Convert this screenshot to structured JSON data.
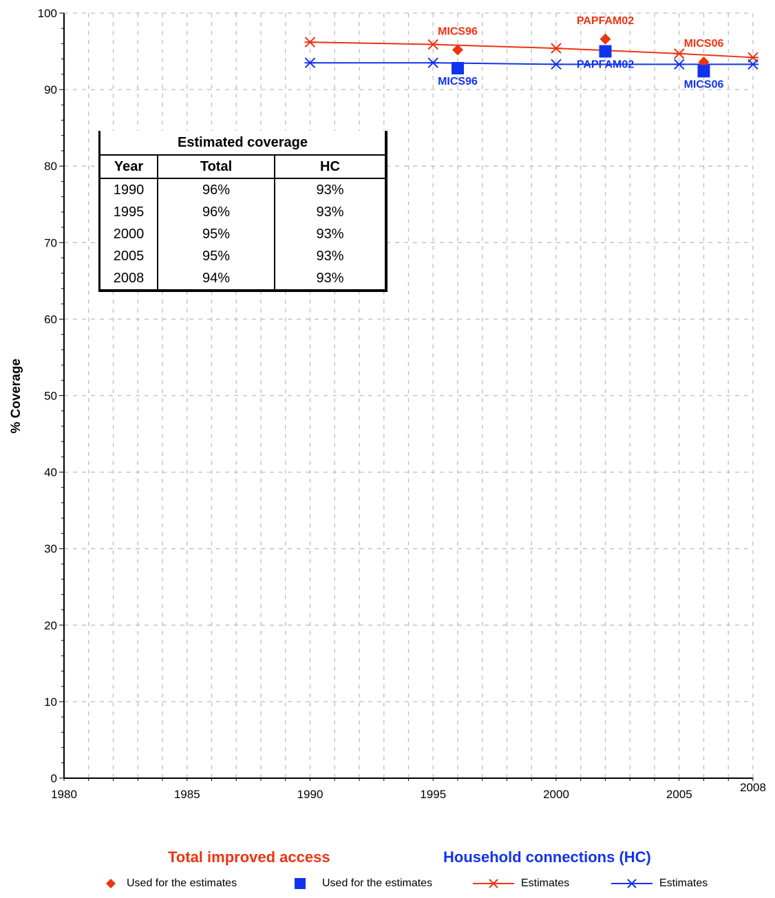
{
  "chart_data": {
    "type": "line",
    "title": "",
    "ylabel": "% Coverage",
    "xlabel": "",
    "xlim": [
      1980,
      2008
    ],
    "ylim": [
      0,
      100
    ],
    "x_ticks": [
      "1980",
      "1985",
      "1990",
      "1995",
      "2000",
      "2005",
      "2008"
    ],
    "y_ticks": [
      "0",
      "10",
      "20",
      "30",
      "40",
      "50",
      "60",
      "70",
      "80",
      "90",
      "100"
    ],
    "grid": true,
    "series": [
      {
        "name": "Estimates",
        "group": "Total improved access",
        "color": "#ee3311",
        "marker": "asterisk",
        "x": [
          1990,
          1995,
          2000,
          2005,
          2008
        ],
        "y": [
          96.2,
          95.9,
          95.4,
          94.7,
          94.2
        ]
      },
      {
        "name": "Estimates",
        "group": "Household connections (HC)",
        "color": "#1133ee",
        "marker": "asterisk",
        "x": [
          1990,
          1995,
          2000,
          2005,
          2008
        ],
        "y": [
          93.5,
          93.5,
          93.3,
          93.3,
          93.3
        ]
      },
      {
        "name": "Used for the estimates",
        "group": "Total improved access",
        "color": "#ee3311",
        "marker": "diamond",
        "points": [
          {
            "x": 1996,
            "y": 95.2,
            "label": "MICS96"
          },
          {
            "x": 2002,
            "y": 96.6,
            "label": "PAPFAM02"
          },
          {
            "x": 2006,
            "y": 93.6,
            "label": "MICS06"
          }
        ]
      },
      {
        "name": "Used for the estimates",
        "group": "Household connections (HC)",
        "color": "#1133ee",
        "marker": "square",
        "points": [
          {
            "x": 1996,
            "y": 92.8,
            "label": "MICS96"
          },
          {
            "x": 2002,
            "y": 95.0,
            "label": "PAPFAM02"
          },
          {
            "x": 2006,
            "y": 92.4,
            "label": "MICS06"
          }
        ]
      }
    ],
    "table": {
      "title": "Estimated coverage",
      "columns": [
        "Year",
        "Total",
        "HC"
      ],
      "rows": [
        [
          "1990",
          "96%",
          "93%"
        ],
        [
          "1995",
          "96%",
          "93%"
        ],
        [
          "2000",
          "95%",
          "93%"
        ],
        [
          "2005",
          "95%",
          "93%"
        ],
        [
          "2008",
          "94%",
          "93%"
        ]
      ]
    },
    "series_titles": [
      {
        "text": "Total improved access",
        "color": "#ee3311"
      },
      {
        "text": "Household connections (HC)",
        "color": "#1133ee"
      }
    ],
    "legend": [
      {
        "label": "Used for the estimates",
        "symbol": "diamond",
        "color": "#ee3311"
      },
      {
        "label": "Used for the estimates",
        "symbol": "square",
        "color": "#1133ee"
      },
      {
        "label": "Estimates",
        "symbol": "line-asterisk",
        "color": "#ee3311"
      },
      {
        "label": "Estimates",
        "symbol": "line-asterisk",
        "color": "#1133ee"
      }
    ],
    "legend_position": "bottom"
  }
}
